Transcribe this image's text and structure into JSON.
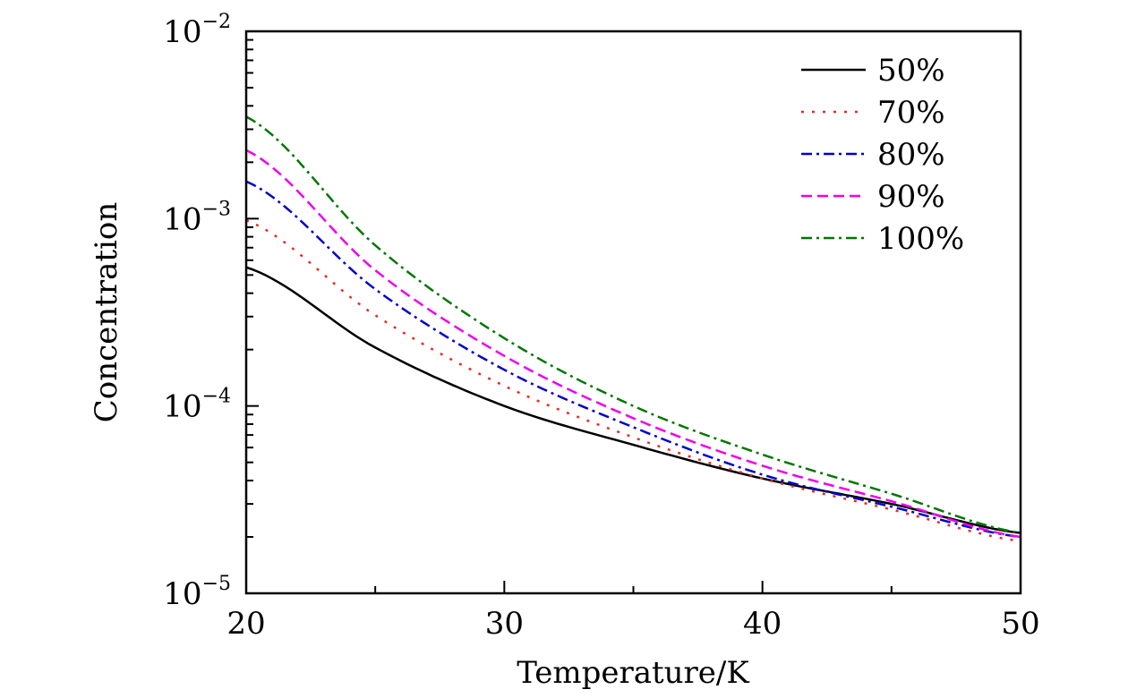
{
  "chart_data": {
    "type": "line",
    "title": "",
    "xlabel": "Temperature/K",
    "ylabel": "Concentration",
    "xlim": [
      20,
      50
    ],
    "ylim": [
      1e-05,
      0.01
    ],
    "yscale": "log",
    "grid": false,
    "legend_position": "top-right",
    "x_ticks": [
      "20",
      "30",
      "40",
      "50"
    ],
    "y_ticks": [
      {
        "base": "10",
        "exp": "−5"
      },
      {
        "base": "10",
        "exp": "−4"
      },
      {
        "base": "10",
        "exp": "−3"
      },
      {
        "base": "10",
        "exp": "−2"
      }
    ],
    "x": [
      20,
      25,
      30,
      35,
      40,
      45,
      50
    ],
    "series": [
      {
        "name": "50%",
        "color": "#000000",
        "dash": "solid",
        "values": [
          0.00055,
          0.000205,
          0.0001,
          6.2e-05,
          4.1e-05,
          3e-05,
          2.1e-05
        ]
      },
      {
        "name": "70%",
        "color": "#e03020",
        "dash": "dotted",
        "values": [
          0.00098,
          0.000305,
          0.000128,
          6.8e-05,
          4.1e-05,
          2.8e-05,
          1.9e-05
        ]
      },
      {
        "name": "80%",
        "color": "#0000cc",
        "dash": "dashdot",
        "values": [
          0.00158,
          0.00042,
          0.000156,
          7.7e-05,
          4.3e-05,
          2.9e-05,
          2e-05
        ]
      },
      {
        "name": "90%",
        "color": "#ee00ee",
        "dash": "dashed",
        "values": [
          0.00232,
          0.00053,
          0.000185,
          8.6e-05,
          4.8e-05,
          3.1e-05,
          2e-05
        ]
      },
      {
        "name": "100%",
        "color": "#007700",
        "dash": "dashdot",
        "values": [
          0.0035,
          0.00072,
          0.00023,
          0.0001,
          5.5e-05,
          3.4e-05,
          2.1e-05
        ]
      }
    ]
  }
}
